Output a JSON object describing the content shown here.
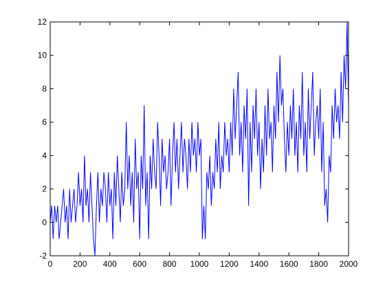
{
  "chart_data": {
    "type": "line",
    "x": [
      0,
      10,
      20,
      30,
      40,
      50,
      60,
      70,
      80,
      90,
      100,
      110,
      120,
      130,
      140,
      150,
      160,
      170,
      180,
      190,
      200,
      210,
      220,
      230,
      240,
      250,
      260,
      270,
      280,
      290,
      300,
      310,
      320,
      330,
      340,
      350,
      360,
      370,
      380,
      390,
      400,
      410,
      420,
      430,
      440,
      450,
      460,
      470,
      480,
      490,
      500,
      510,
      520,
      530,
      540,
      550,
      560,
      570,
      580,
      590,
      600,
      610,
      620,
      630,
      640,
      650,
      660,
      670,
      680,
      690,
      700,
      710,
      720,
      730,
      740,
      750,
      760,
      770,
      780,
      790,
      800,
      810,
      820,
      830,
      840,
      850,
      860,
      870,
      880,
      890,
      900,
      910,
      920,
      930,
      940,
      950,
      960,
      970,
      980,
      990,
      1000,
      1010,
      1020,
      1030,
      1040,
      1050,
      1060,
      1070,
      1080,
      1090,
      1100,
      1110,
      1120,
      1130,
      1140,
      1150,
      1160,
      1170,
      1180,
      1190,
      1200,
      1210,
      1220,
      1230,
      1240,
      1250,
      1260,
      1270,
      1280,
      1290,
      1300,
      1310,
      1320,
      1330,
      1340,
      1350,
      1360,
      1370,
      1380,
      1390,
      1400,
      1410,
      1420,
      1430,
      1440,
      1450,
      1460,
      1470,
      1480,
      1490,
      1500,
      1510,
      1520,
      1530,
      1540,
      1550,
      1560,
      1570,
      1580,
      1590,
      1600,
      1610,
      1620,
      1630,
      1640,
      1650,
      1660,
      1670,
      1680,
      1690,
      1700,
      1710,
      1720,
      1730,
      1740,
      1750,
      1760,
      1770,
      1780,
      1790,
      1800,
      1810,
      1820,
      1830,
      1840,
      1850,
      1860,
      1870,
      1880,
      1890,
      1900,
      1910,
      1920,
      1930,
      1940,
      1950,
      1960,
      1970,
      1980,
      1990,
      2000
    ],
    "series": [
      {
        "color": "#0000ff",
        "values": [
          0,
          1,
          -1,
          1,
          0,
          1,
          -1,
          0,
          1,
          2,
          0,
          1,
          -1,
          2,
          0,
          1,
          2,
          0,
          1,
          3,
          1,
          2,
          0,
          4,
          1,
          2,
          0,
          3,
          1,
          -1,
          -2,
          1,
          3,
          0,
          2,
          1,
          3,
          2,
          0,
          3,
          1,
          2,
          -1,
          3,
          1,
          4,
          2,
          0,
          3,
          1,
          2,
          6,
          2,
          4,
          1,
          3,
          0,
          5,
          2,
          3,
          -1,
          4,
          2,
          7,
          1,
          3,
          -1,
          4,
          2,
          5,
          3,
          2,
          6,
          4,
          1,
          5,
          3,
          4,
          2,
          3,
          5,
          1,
          4,
          6,
          3,
          5,
          2,
          4,
          6,
          3,
          5,
          4,
          2,
          5,
          3,
          6,
          4,
          5,
          3,
          6,
          4,
          5,
          -1,
          1,
          -1,
          3,
          2,
          4,
          1,
          3,
          2,
          5,
          3,
          6,
          2,
          4,
          3,
          6,
          4,
          5,
          3,
          6,
          4,
          8,
          5,
          7,
          9,
          4,
          6,
          3,
          7,
          5,
          8,
          1,
          6,
          3,
          7,
          5,
          8,
          4,
          6,
          2,
          5,
          3,
          7,
          4,
          8,
          5,
          6,
          3,
          7,
          5,
          9,
          6,
          10,
          7,
          8,
          5,
          3,
          6,
          4,
          7,
          5,
          8,
          4,
          6,
          3,
          7,
          5,
          9,
          4,
          6,
          3,
          8,
          5,
          7,
          9,
          4,
          6,
          7,
          5,
          8,
          3,
          6,
          1,
          2,
          0,
          4,
          3,
          7,
          5,
          8,
          6,
          7,
          5,
          9,
          6,
          10,
          8,
          12,
          7
        ]
      }
    ],
    "xlim": [
      0,
      2000
    ],
    "xticks": [
      0,
      200,
      400,
      600,
      800,
      1000,
      1200,
      1400,
      1600,
      1800,
      2000
    ],
    "ylim": [
      -2,
      12
    ],
    "yticks": [
      -2,
      0,
      2,
      4,
      6,
      8,
      10,
      12
    ]
  }
}
